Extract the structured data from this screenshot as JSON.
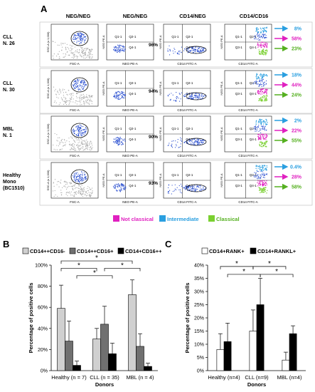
{
  "panel_a": {
    "label": "A",
    "column_headers": [
      "NEG/NEG",
      "NEG/NEG",
      "CD14/NEG",
      "CD14/CD16"
    ],
    "rows": [
      {
        "name_lines": [
          "CLL",
          "N. 26"
        ],
        "cd14_neg_pct": "96%",
        "nc": "58%",
        "inter": "8%",
        "classical": "23%"
      },
      {
        "name_lines": [
          "CLL",
          "N. 30"
        ],
        "cd14_neg_pct": "94%",
        "nc": "44%",
        "inter": "18%",
        "classical": "24%"
      },
      {
        "name_lines": [
          "MBL",
          "N. 1"
        ],
        "cd14_neg_pct": "90%",
        "nc": "22%",
        "inter": "2%",
        "classical": "55%"
      },
      {
        "name_lines": [
          "Healthy",
          "Mono",
          "(BC1510)"
        ],
        "cd14_neg_pct": "93%",
        "nc": "28%",
        "inter": "0.4%",
        "classical": "58%"
      }
    ],
    "plot_text": {
      "fsc": "FSC-A",
      "ssc": "SSC-A (x 1,000)",
      "neo": "NEO PE-A",
      "cd14": "CD14 FITC-A",
      "q1": "Q1-1",
      "q2": "Q2-1",
      "q3": "Q3-1",
      "q4": "Q4-1",
      "fsc_max": "(x 1,000)"
    },
    "legend": [
      {
        "label": "Not classical",
        "color": "#e020c0"
      },
      {
        "label": "Intermediate",
        "color": "#2a9fe0"
      },
      {
        "label": "Classical",
        "color": "#7ad030"
      }
    ]
  },
  "chart_data": [
    {
      "type": "bar",
      "panel": "B",
      "legend_position": "top",
      "categories": [
        "Healthy (n = 7)",
        "CLL (n = 35)",
        "MBL (n = 4)"
      ],
      "series": [
        {
          "name": "CD14++CD16-",
          "color": "#d0d0d0",
          "values": [
            59,
            30,
            72
          ],
          "errors": [
            22,
            10,
            14
          ]
        },
        {
          "name": "CD14++CD16+",
          "color": "#707070",
          "values": [
            28,
            44,
            23
          ],
          "errors": [
            19,
            17,
            12
          ]
        },
        {
          "name": "CD14+CD16++",
          "color": "#000000",
          "values": [
            5,
            16,
            4
          ],
          "errors": [
            4,
            10,
            3
          ]
        }
      ],
      "xlabel": "Donors",
      "ylabel": "Percentage of positive cells",
      "ylim": [
        0,
        100
      ],
      "yticks": [
        "0%",
        "20%",
        "40%",
        "60%",
        "80%",
        "100%"
      ],
      "annotations": [
        "*",
        "*",
        "*",
        "*"
      ],
      "grid": false
    },
    {
      "type": "bar",
      "panel": "C",
      "legend_position": "top",
      "categories": [
        "Healthy (n=4)",
        "CLL (n=9)",
        "MBL (n=4)"
      ],
      "series": [
        {
          "name": "CD14+RANK+",
          "color": "#ffffff",
          "values": [
            8,
            15,
            4
          ],
          "errors": [
            6,
            8,
            3
          ]
        },
        {
          "name": "CD14+RANKL+",
          "color": "#000000",
          "values": [
            11,
            25,
            14
          ],
          "errors": [
            7,
            10,
            3
          ]
        }
      ],
      "xlabel": "Donors",
      "ylabel": "Percentage of positive cells",
      "ylim": [
        0,
        40
      ],
      "yticks": [
        "0%",
        "5%",
        "10%",
        "15%",
        "20%",
        "25%",
        "30%",
        "35%",
        "40%"
      ],
      "annotations": [
        "*",
        "*",
        "*",
        "*"
      ],
      "grid": false
    }
  ],
  "panel_labels": {
    "b": "B",
    "c": "C"
  }
}
